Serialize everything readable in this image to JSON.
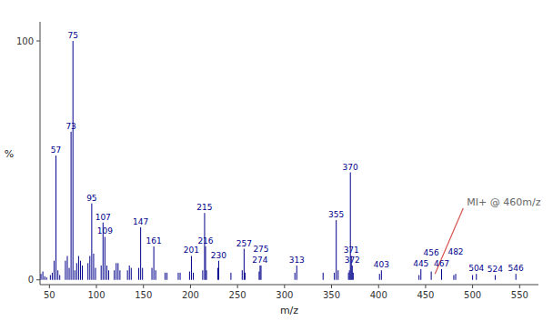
{
  "chart_data": {
    "type": "stem",
    "title": "",
    "xlabel": "m/z",
    "ylabel": "%",
    "xlim": [
      40,
      570
    ],
    "ylim": [
      -2,
      108
    ],
    "xticks": [
      50,
      100,
      150,
      200,
      250,
      300,
      350,
      400,
      450,
      500,
      550
    ],
    "yticks": [
      0,
      100
    ],
    "color": "#00008B",
    "x": [
      41,
      43,
      45,
      47,
      51,
      53,
      55,
      57,
      59,
      61,
      67,
      69,
      71,
      73,
      75,
      77,
      79,
      81,
      83,
      85,
      91,
      93,
      95,
      97,
      99,
      105,
      107,
      109,
      111,
      113,
      119,
      121,
      123,
      125,
      133,
      135,
      137,
      145,
      147,
      149,
      159,
      161,
      163,
      173,
      175,
      187,
      189,
      199,
      201,
      203,
      213,
      215,
      216,
      217,
      229,
      230,
      243,
      255,
      257,
      258,
      273,
      274,
      275,
      311,
      313,
      341,
      353,
      355,
      357,
      368,
      369,
      370,
      371,
      372,
      373,
      401,
      403,
      443,
      445,
      456,
      467,
      480,
      482,
      500,
      504,
      524,
      546
    ],
    "values": [
      2.5,
      3.5,
      1.5,
      1.0,
      2.0,
      3.0,
      8.0,
      52.0,
      4.0,
      2.0,
      8.0,
      10.0,
      5.0,
      62.0,
      100.0,
      4.0,
      7.0,
      10.0,
      8.0,
      6.0,
      7.0,
      10.0,
      32.0,
      11.0,
      5.0,
      6.0,
      24.0,
      18.0,
      6.0,
      4.0,
      4.0,
      7.0,
      7.0,
      4.0,
      4.0,
      6.0,
      5.0,
      5.0,
      22.0,
      5.0,
      5.0,
      14.0,
      4.0,
      3.0,
      3.0,
      3.0,
      3.0,
      3.5,
      10.0,
      3.0,
      4.0,
      28.0,
      14.0,
      4.0,
      5.0,
      8.0,
      3.0,
      4.0,
      13.0,
      3.0,
      3.5,
      6.0,
      6.0,
      3.0,
      6.0,
      3.0,
      3.0,
      25.0,
      4.0,
      3.0,
      4.0,
      45.0,
      10.0,
      6.0,
      3.0,
      2.5,
      4.0,
      2.0,
      4.5,
      3.5,
      4.5,
      2.0,
      2.5,
      2.0,
      2.5,
      2.0,
      2.5
    ],
    "annotations": [
      {
        "text": "57",
        "x": 57,
        "y": 52.0
      },
      {
        "text": "73",
        "x": 73,
        "y": 62.0
      },
      {
        "text": "75",
        "x": 75,
        "y": 100.0
      },
      {
        "text": "95",
        "x": 95,
        "y": 32.0
      },
      {
        "text": "107",
        "x": 107,
        "y": 24.0
      },
      {
        "text": "109",
        "x": 109,
        "y": 18.0
      },
      {
        "text": "147",
        "x": 147,
        "y": 22.0
      },
      {
        "text": "161",
        "x": 161,
        "y": 14.0
      },
      {
        "text": "201",
        "x": 201,
        "y": 10.0
      },
      {
        "text": "215",
        "x": 215,
        "y": 28.0
      },
      {
        "text": "216",
        "x": 216,
        "y": 14.0
      },
      {
        "text": "230",
        "x": 230,
        "y": 8.0
      },
      {
        "text": "257",
        "x": 257,
        "y": 13.0
      },
      {
        "text": "274",
        "x": 274,
        "y": 6.0
      },
      {
        "text": "275",
        "x": 275,
        "y": 6.0
      },
      {
        "text": "313",
        "x": 313,
        "y": 6.0
      },
      {
        "text": "355",
        "x": 355,
        "y": 25.0
      },
      {
        "text": "370",
        "x": 370,
        "y": 45.0
      },
      {
        "text": "371",
        "x": 371,
        "y": 10.0
      },
      {
        "text": "372",
        "x": 372,
        "y": 6.0
      },
      {
        "text": "403",
        "x": 403,
        "y": 4.0
      },
      {
        "text": "445",
        "x": 445,
        "y": 4.5
      },
      {
        "text": "456",
        "x": 456,
        "y": 3.5
      },
      {
        "text": "467",
        "x": 467,
        "y": 4.5
      },
      {
        "text": "482",
        "x": 482,
        "y": 2.5
      },
      {
        "text": "504",
        "x": 504,
        "y": 2.5
      },
      {
        "text": "524",
        "x": 524,
        "y": 2.0
      },
      {
        "text": "546",
        "x": 546,
        "y": 2.5
      },
      {
        "text": "MI+ @ 460m/z",
        "x": 460,
        "y": 2.5,
        "xytext": [
          490,
          30
        ]
      }
    ]
  }
}
